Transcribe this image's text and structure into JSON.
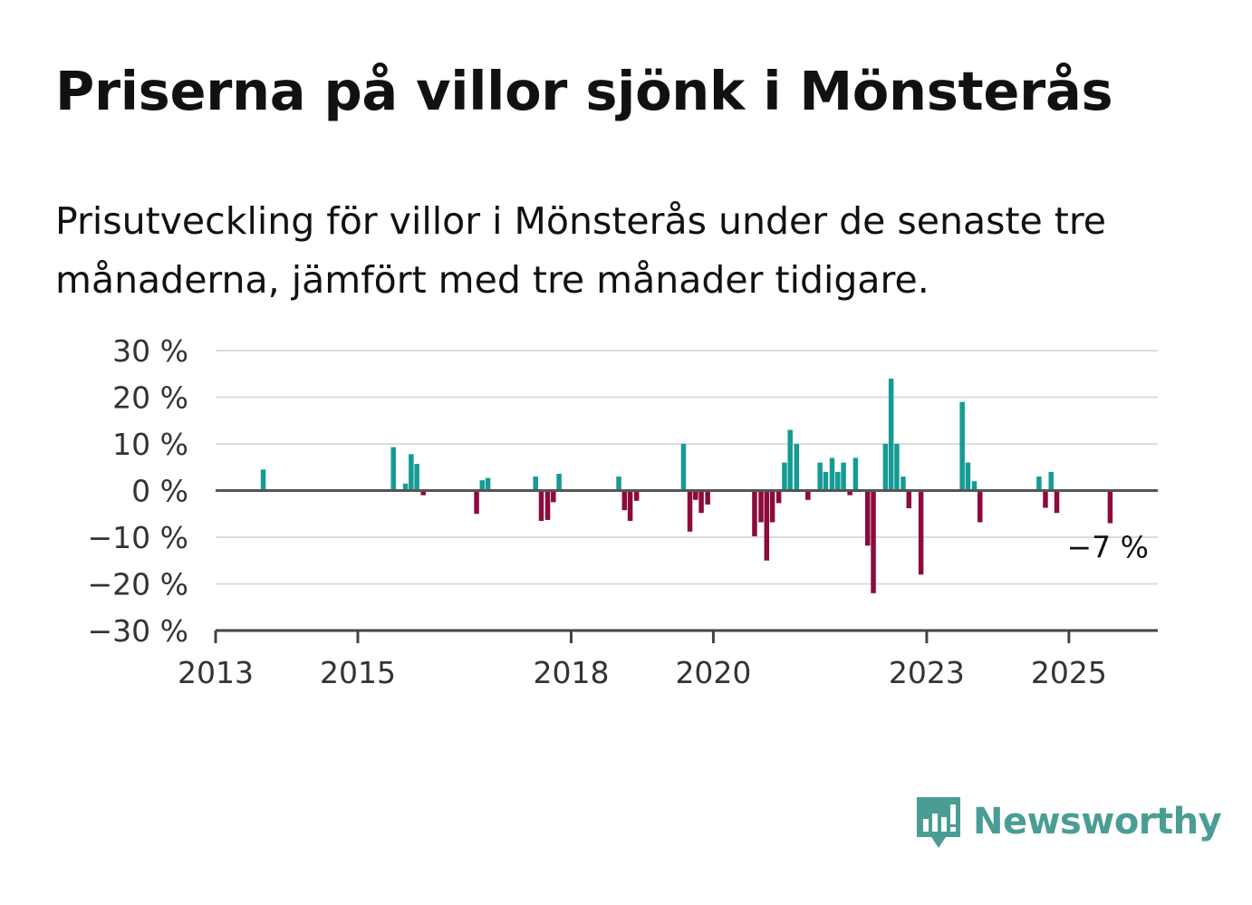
{
  "header": {
    "title": "Priserna på villor sjönk i Mönsterås",
    "subtitle": "Prisutveckling för villor i Mönsterås under de senaste tre månaderna, jämfört med tre månader tidigare."
  },
  "brand": {
    "name": "Newsworthy",
    "icon": "newsworthy-logo-icon",
    "color": "#4a9d94"
  },
  "chart_data": {
    "type": "bar",
    "ylim": [
      -30,
      30
    ],
    "xlim": [
      2013,
      2026.25
    ],
    "y_ticks": [
      30,
      20,
      10,
      0,
      -10,
      -20,
      -30
    ],
    "y_tick_labels": [
      "30 %",
      "20 %",
      "10 %",
      "0 %",
      "−10 %",
      "−20 %",
      "−30 %"
    ],
    "x_ticks": [
      2013,
      2015,
      2018,
      2020,
      2023,
      2025
    ],
    "x_tick_labels": [
      "2013",
      "2015",
      "2018",
      "2020",
      "2023",
      "2025"
    ],
    "grid": true,
    "positive_color": "#169b94",
    "negative_color": "#8c0a3d",
    "last_value_label": "−7 %",
    "points": [
      {
        "x": 2013.67,
        "y": 4.5
      },
      {
        "x": 2015.5,
        "y": 9.3
      },
      {
        "x": 2015.67,
        "y": 1.5
      },
      {
        "x": 2015.75,
        "y": 7.8
      },
      {
        "x": 2015.83,
        "y": 5.7
      },
      {
        "x": 2015.92,
        "y": -1
      },
      {
        "x": 2016.67,
        "y": -5
      },
      {
        "x": 2016.75,
        "y": 2.2
      },
      {
        "x": 2016.83,
        "y": 2.7
      },
      {
        "x": 2017.5,
        "y": 3
      },
      {
        "x": 2017.58,
        "y": -6.5
      },
      {
        "x": 2017.67,
        "y": -6.3
      },
      {
        "x": 2017.75,
        "y": -2.5
      },
      {
        "x": 2017.83,
        "y": 3.6
      },
      {
        "x": 2018.67,
        "y": 3
      },
      {
        "x": 2018.75,
        "y": -4.2
      },
      {
        "x": 2018.83,
        "y": -6.5
      },
      {
        "x": 2018.92,
        "y": -2.2
      },
      {
        "x": 2019.58,
        "y": 10
      },
      {
        "x": 2019.67,
        "y": -8.8
      },
      {
        "x": 2019.75,
        "y": -2
      },
      {
        "x": 2019.83,
        "y": -4.8
      },
      {
        "x": 2019.92,
        "y": -3
      },
      {
        "x": 2020.58,
        "y": -9.8
      },
      {
        "x": 2020.67,
        "y": -6.8
      },
      {
        "x": 2020.75,
        "y": -15
      },
      {
        "x": 2020.83,
        "y": -6.8
      },
      {
        "x": 2020.92,
        "y": -2.7
      },
      {
        "x": 2021.0,
        "y": 6
      },
      {
        "x": 2021.08,
        "y": 13
      },
      {
        "x": 2021.17,
        "y": 10
      },
      {
        "x": 2021.33,
        "y": -2
      },
      {
        "x": 2021.5,
        "y": 6
      },
      {
        "x": 2021.58,
        "y": 4
      },
      {
        "x": 2021.67,
        "y": 7
      },
      {
        "x": 2021.75,
        "y": 4
      },
      {
        "x": 2021.83,
        "y": 6
      },
      {
        "x": 2021.92,
        "y": -1
      },
      {
        "x": 2022.0,
        "y": 7
      },
      {
        "x": 2022.17,
        "y": -11.8
      },
      {
        "x": 2022.25,
        "y": -22
      },
      {
        "x": 2022.42,
        "y": 10
      },
      {
        "x": 2022.5,
        "y": 24
      },
      {
        "x": 2022.58,
        "y": 10
      },
      {
        "x": 2022.67,
        "y": 3
      },
      {
        "x": 2022.75,
        "y": -3.8
      },
      {
        "x": 2022.92,
        "y": -18
      },
      {
        "x": 2023.5,
        "y": 19
      },
      {
        "x": 2023.58,
        "y": 6
      },
      {
        "x": 2023.67,
        "y": 2
      },
      {
        "x": 2023.75,
        "y": -6.8
      },
      {
        "x": 2024.58,
        "y": 3
      },
      {
        "x": 2024.67,
        "y": -3.7
      },
      {
        "x": 2024.75,
        "y": 4
      },
      {
        "x": 2024.83,
        "y": -4.8
      },
      {
        "x": 2025.58,
        "y": -7
      }
    ]
  }
}
